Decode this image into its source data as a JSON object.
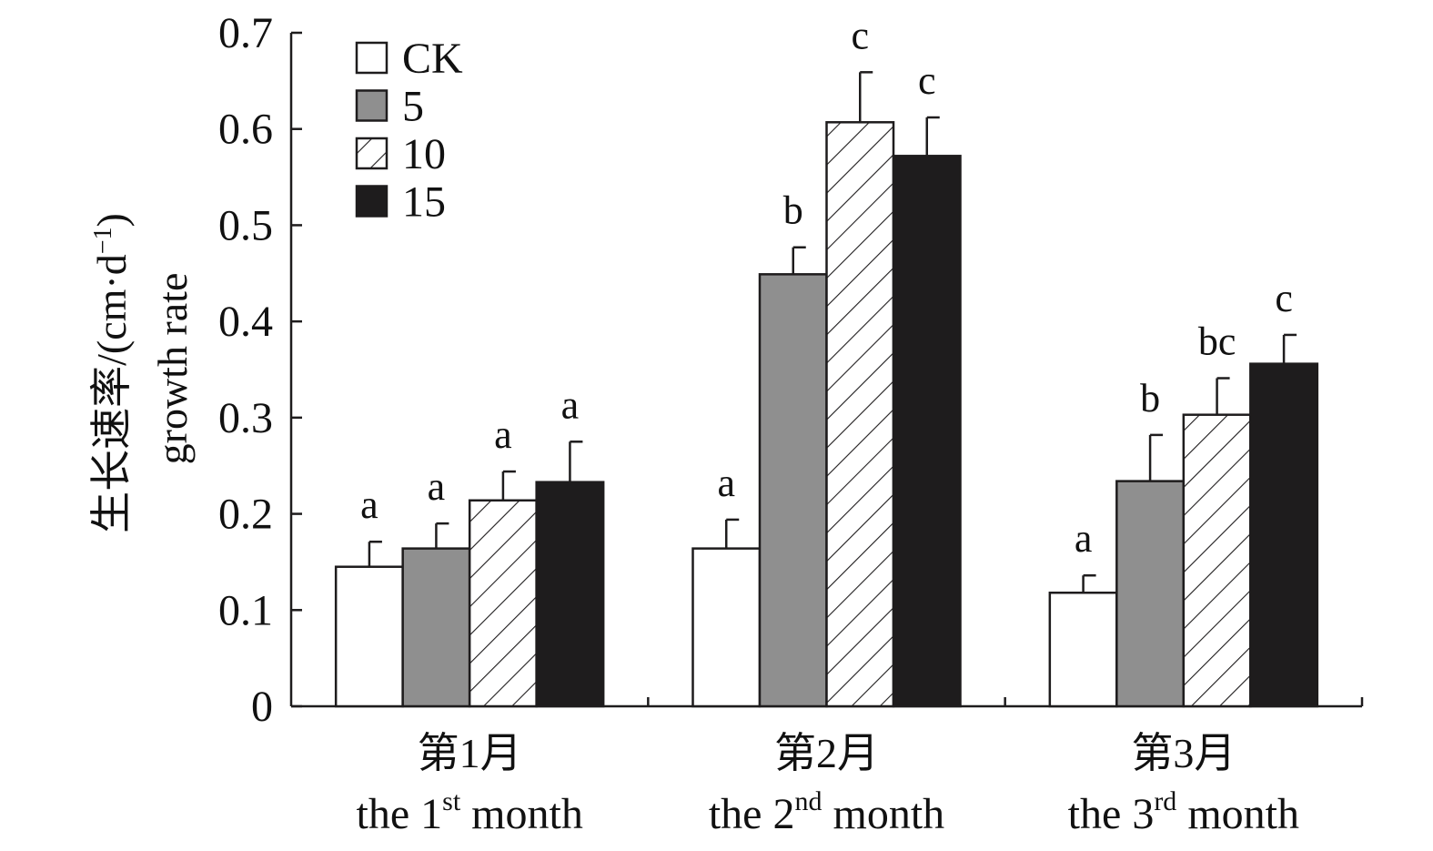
{
  "chart_data": {
    "type": "bar",
    "ylabel_cn": "生长速率/(cm·d",
    "ylabel_sup": "−1",
    "ylabel_close": ")",
    "ylabel_en": "growth rate",
    "ylim": [
      0,
      0.7
    ],
    "yticks": [
      "0",
      "0.1",
      "0.2",
      "0.3",
      "0.4",
      "0.5",
      "0.6",
      "0.7"
    ],
    "yvalues": [
      0,
      0.1,
      0.2,
      0.3,
      0.4,
      0.5,
      0.6,
      0.7
    ],
    "groups": [
      {
        "cn": "第1月",
        "en_pre": "the 1",
        "en_sup": "st",
        "en_post": " month"
      },
      {
        "cn": "第2月",
        "en_pre": "the 2",
        "en_sup": "nd",
        "en_post": " month"
      },
      {
        "cn": "第3月",
        "en_pre": "the 3",
        "en_sup": "rd",
        "en_post": " month"
      }
    ],
    "series": [
      {
        "name": "CK",
        "fill": "#ffffff",
        "pattern": "none",
        "values": [
          0.145,
          0.164,
          0.118
        ],
        "errors": [
          0.026,
          0.03,
          0.018
        ],
        "letters": [
          "a",
          "a",
          "a"
        ]
      },
      {
        "name": "5",
        "fill": "#8f8f8f",
        "pattern": "none",
        "values": [
          0.164,
          0.449,
          0.234
        ],
        "errors": [
          0.026,
          0.028,
          0.048
        ],
        "letters": [
          "a",
          "b",
          "b"
        ]
      },
      {
        "name": "10",
        "fill": "#ffffff",
        "pattern": "diagonal-hatch",
        "values": [
          0.214,
          0.607,
          0.303
        ],
        "errors": [
          0.03,
          0.052,
          0.038
        ],
        "letters": [
          "a",
          "c",
          "bc"
        ]
      },
      {
        "name": "15",
        "fill": "#1e1c1d",
        "pattern": "none",
        "values": [
          0.233,
          0.572,
          0.356
        ],
        "errors": [
          0.042,
          0.04,
          0.03
        ],
        "letters": [
          "a",
          "c",
          "c"
        ]
      }
    ],
    "legend_position": "top-left"
  }
}
